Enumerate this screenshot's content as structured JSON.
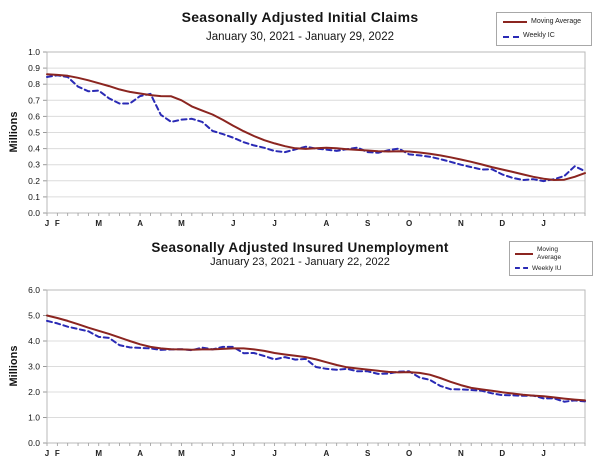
{
  "page": {
    "background": "#ffffff"
  },
  "colors": {
    "moving_average": "#8b2520",
    "weekly": "#2a2ab5",
    "grid": "#dcdcdc",
    "plot_border": "#b8b8b8"
  },
  "chart_data": [
    {
      "type": "line",
      "title": "Seasonally Adjusted Initial Claims",
      "subtitle": "January 30, 2021 - January 29, 2022",
      "ylabel": "Millions",
      "ylim": [
        0.0,
        1.0
      ],
      "ytick_step": 0.1,
      "ytick_labels": [
        "0.0",
        "0.1",
        "0.2",
        "0.3",
        "0.4",
        "0.5",
        "0.6",
        "0.7",
        "0.8",
        "0.9",
        "1.0"
      ],
      "x_month_labels": [
        "J",
        "F",
        "M",
        "A",
        "M",
        "J",
        "J",
        "A",
        "S",
        "O",
        "N",
        "D",
        "J"
      ],
      "month_label_indices": [
        0,
        1,
        5,
        9,
        13,
        18,
        22,
        27,
        31,
        35,
        40,
        44,
        48
      ],
      "grid": true,
      "legend_position": "top-right",
      "series": [
        {
          "name": "Moving Average",
          "color": "#8b2520",
          "style": "solid",
          "values": [
            0.862,
            0.858,
            0.852,
            0.84,
            0.824,
            0.806,
            0.788,
            0.768,
            0.752,
            0.742,
            0.732,
            0.726,
            0.725,
            0.7,
            0.662,
            0.636,
            0.612,
            0.578,
            0.542,
            0.508,
            0.478,
            0.452,
            0.432,
            0.415,
            0.402,
            0.398,
            0.402,
            0.405,
            0.402,
            0.396,
            0.392,
            0.388,
            0.384,
            0.382,
            0.384,
            0.382,
            0.376,
            0.368,
            0.358,
            0.346,
            0.332,
            0.318,
            0.302,
            0.285,
            0.27,
            0.255,
            0.24,
            0.225,
            0.213,
            0.205,
            0.207,
            0.225,
            0.248
          ]
        },
        {
          "name": "Weekly IC",
          "color": "#2a2ab5",
          "style": "dashed",
          "values": [
            0.845,
            0.855,
            0.845,
            0.785,
            0.756,
            0.76,
            0.712,
            0.68,
            0.68,
            0.726,
            0.74,
            0.61,
            0.566,
            0.58,
            0.585,
            0.566,
            0.51,
            0.49,
            0.468,
            0.44,
            0.42,
            0.405,
            0.385,
            0.378,
            0.395,
            0.412,
            0.4,
            0.394,
            0.386,
            0.396,
            0.406,
            0.378,
            0.374,
            0.39,
            0.4,
            0.364,
            0.358,
            0.35,
            0.335,
            0.318,
            0.3,
            0.285,
            0.27,
            0.272,
            0.24,
            0.218,
            0.205,
            0.21,
            0.198,
            0.21,
            0.23,
            0.29,
            0.26
          ]
        }
      ]
    },
    {
      "type": "line",
      "title": "Seasonally Adjusted Insured Unemployment",
      "subtitle": "January 23, 2021 - January 22, 2022",
      "ylabel": "Millions",
      "ylim": [
        0.0,
        6.0
      ],
      "ytick_step": 1.0,
      "ytick_labels": [
        "0.0",
        "1.0",
        "2.0",
        "3.0",
        "4.0",
        "5.0",
        "6.0"
      ],
      "x_month_labels": [
        "J",
        "F",
        "M",
        "A",
        "M",
        "J",
        "J",
        "A",
        "S",
        "O",
        "N",
        "D",
        "J"
      ],
      "month_label_indices": [
        0,
        1,
        5,
        9,
        13,
        18,
        22,
        27,
        31,
        35,
        40,
        44,
        48
      ],
      "grid": true,
      "legend_position": "top-right",
      "series": [
        {
          "name": "Moving Average",
          "color": "#8b2520",
          "style": "solid",
          "values": [
            5.0,
            4.9,
            4.79,
            4.66,
            4.52,
            4.4,
            4.28,
            4.14,
            4.0,
            3.87,
            3.77,
            3.71,
            3.68,
            3.67,
            3.66,
            3.67,
            3.67,
            3.69,
            3.71,
            3.71,
            3.67,
            3.61,
            3.53,
            3.47,
            3.42,
            3.37,
            3.28,
            3.17,
            3.06,
            2.97,
            2.92,
            2.88,
            2.83,
            2.79,
            2.77,
            2.78,
            2.75,
            2.68,
            2.55,
            2.4,
            2.27,
            2.16,
            2.1,
            2.05,
            1.99,
            1.94,
            1.89,
            1.86,
            1.83,
            1.79,
            1.74,
            1.7,
            1.67
          ]
        },
        {
          "name": "Weekly IU",
          "color": "#2a2ab5",
          "style": "dashed",
          "values": [
            4.79,
            4.69,
            4.56,
            4.47,
            4.38,
            4.16,
            4.12,
            3.84,
            3.75,
            3.73,
            3.71,
            3.65,
            3.67,
            3.68,
            3.64,
            3.74,
            3.67,
            3.77,
            3.77,
            3.52,
            3.53,
            3.41,
            3.28,
            3.37,
            3.27,
            3.3,
            2.98,
            2.91,
            2.87,
            2.91,
            2.81,
            2.81,
            2.71,
            2.72,
            2.8,
            2.81,
            2.57,
            2.48,
            2.24,
            2.11,
            2.1,
            2.08,
            2.05,
            1.95,
            1.88,
            1.87,
            1.85,
            1.86,
            1.75,
            1.75,
            1.62,
            1.67,
            1.63
          ]
        }
      ]
    }
  ]
}
